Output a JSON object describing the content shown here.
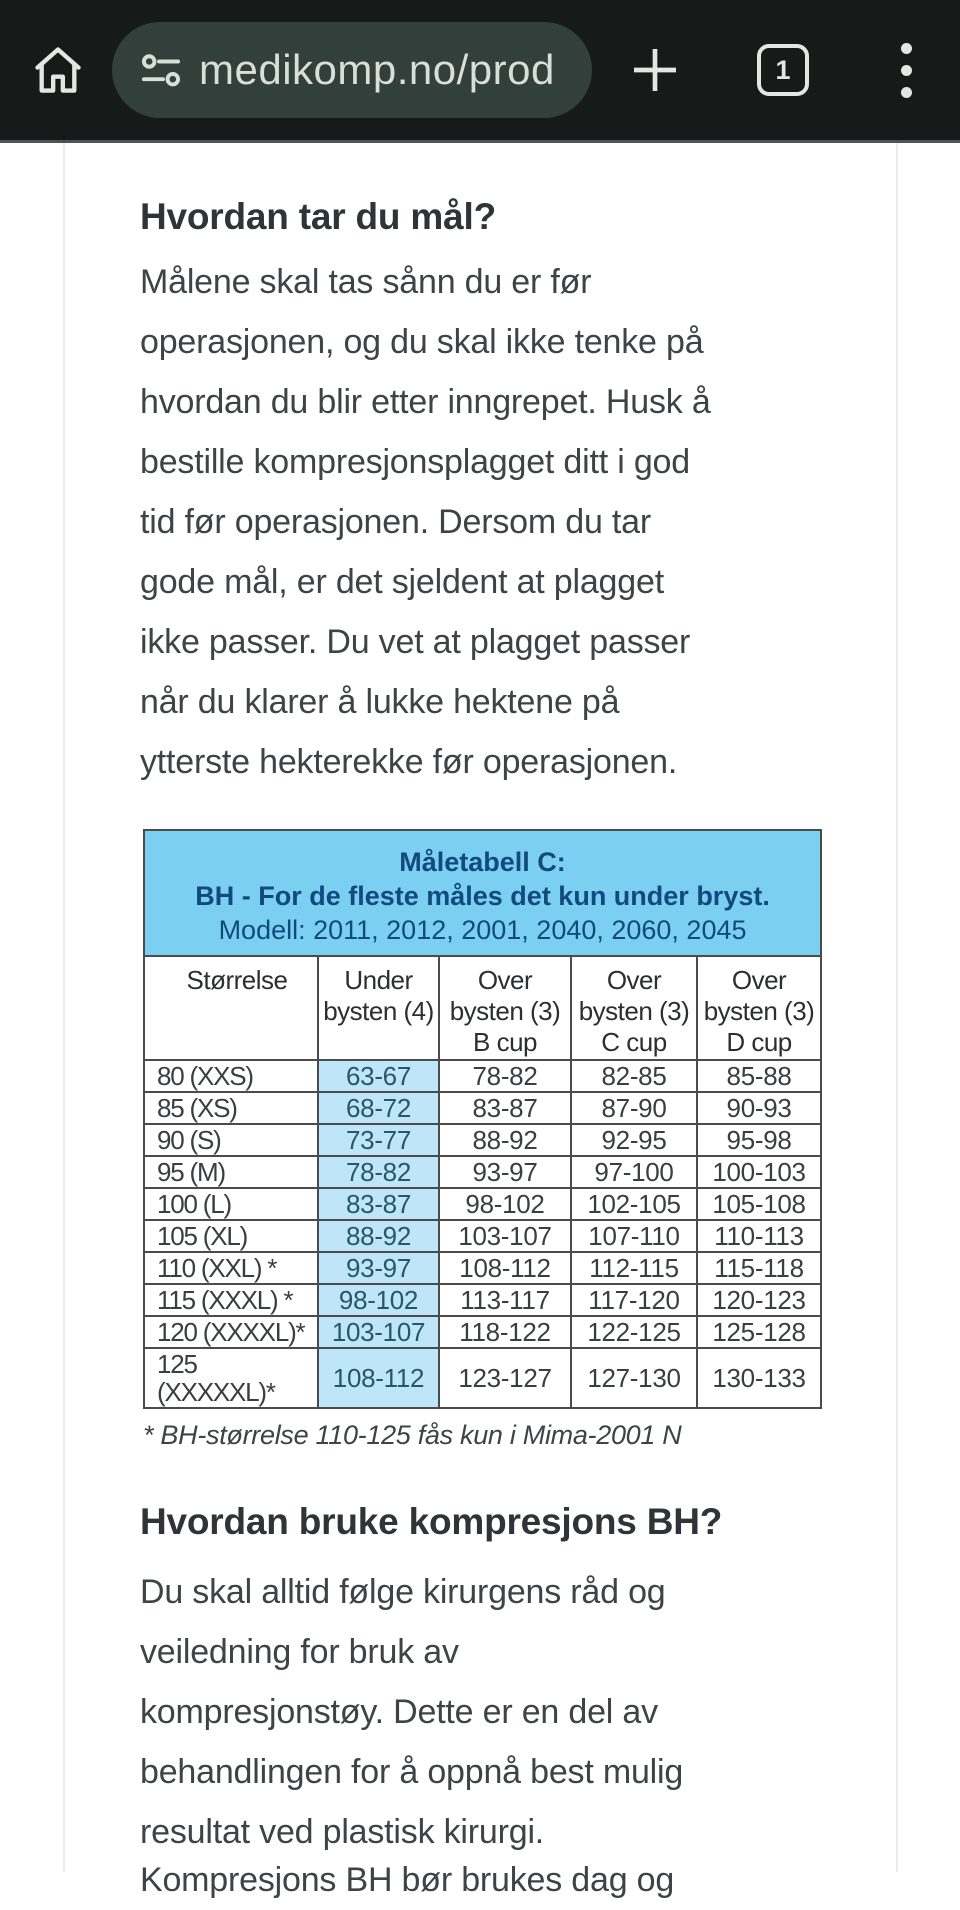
{
  "browser": {
    "url": "medikomp.no/prod",
    "tab_count": "1",
    "icons": [
      "home-icon",
      "site-settings-icon",
      "plus-icon",
      "tab-counter-icon",
      "kebab-menu-icon"
    ]
  },
  "content": {
    "section1": {
      "heading": "Hvordan tar du mål?",
      "lines": [
        "Målene skal tas sånn du er før",
        "operasjonen, og du skal ikke tenke på",
        "hvordan du blir etter inngrepet. Husk å",
        "bestille kompresjonsplagget ditt i god",
        "tid før operasjonen. Dersom du tar",
        "gode mål, er det sjeldent at plagget",
        "ikke passer. Du vet at plagget passer",
        "når du klarer å lukke hektene på",
        "ytterste hekterekke før operasjonen."
      ]
    },
    "section2": {
      "heading": "Hvordan bruke kompresjons BH?",
      "lines": [
        "Du skal alltid følge kirurgens råd og",
        "veiledning for bruk av",
        "kompresjonstøy. Dette er en del av",
        "behandlingen for å oppnå best mulig",
        "resultat ved plastisk kirurgi."
      ]
    },
    "section3_partial": "Kompresjons BH bør brukes dag og"
  },
  "table": {
    "title_lines": [
      "Måletabell C:",
      "BH - For de fleste måles det kun under bryst.",
      "Modell: 2011, 2012, 2001, 2040, 2060, 2045"
    ],
    "columns": [
      [
        "Størrelse"
      ],
      [
        "Under",
        "bysten (4)"
      ],
      [
        "Over",
        "bysten (3)",
        "B cup"
      ],
      [
        "Over",
        "bysten (3)",
        "C cup"
      ],
      [
        "Over",
        "bysten (3)",
        "D cup"
      ]
    ],
    "rows": [
      [
        "80 (XXS)",
        "63-67",
        "78-82",
        "82-85",
        "85-88"
      ],
      [
        "85 (XS)",
        "68-72",
        "83-87",
        "87-90",
        "90-93"
      ],
      [
        "90 (S)",
        "73-77",
        "88-92",
        "92-95",
        "95-98"
      ],
      [
        "95 (M)",
        "78-82",
        "93-97",
        "97-100",
        "100-103"
      ],
      [
        "100 (L)",
        "83-87",
        "98-102",
        "102-105",
        "105-108"
      ],
      [
        "105 (XL)",
        "88-92",
        "103-107",
        "107-110",
        "110-113"
      ],
      [
        "110 (XXL) *",
        "93-97",
        "108-112",
        "112-115",
        "115-118"
      ],
      [
        "115 (XXXL) *",
        "98-102",
        "113-117",
        "117-120",
        "120-123"
      ],
      [
        "120 (XXXXL)*",
        "103-107",
        "118-122",
        "122-125",
        "125-128"
      ],
      [
        "125 (XXXXXL)*",
        "108-112",
        "123-127",
        "127-130",
        "130-133"
      ]
    ],
    "highlight_column_index": 1,
    "footnote": "* BH-størrelse 110-125  fås kun i Mima-2001 N"
  },
  "colors": {
    "toolbar_bg": "#161b19",
    "url_pill_bg": "#333f3a",
    "toolbar_icon": "#e3e6e2",
    "url_text": "#d8ded9",
    "heading_text": "#303438",
    "body_text": "#3f4347",
    "table_title_bg": "#7bd0f1",
    "table_title_text": "#12497f",
    "under_col_header_bg": "#c9eafa",
    "under_col_bg": "#bfe6f8",
    "table_border": "#4b4b4b",
    "page_card_line": "#e8eaee"
  }
}
